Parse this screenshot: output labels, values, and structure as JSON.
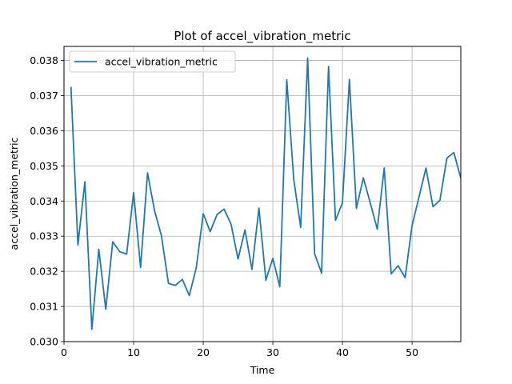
{
  "chart_data": {
    "type": "line",
    "title": "Plot of accel_vibration_metric",
    "xlabel": "Time",
    "ylabel": "accel_vibration_metric",
    "xlim": [
      0,
      57
    ],
    "ylim": [
      0.03,
      0.0384
    ],
    "xticks": [
      0,
      10,
      20,
      30,
      40,
      50
    ],
    "xtick_labels": [
      "0",
      "10",
      "20",
      "30",
      "40",
      "50"
    ],
    "yticks": [
      0.03,
      0.031,
      0.032,
      0.033,
      0.034,
      0.035,
      0.036,
      0.037,
      0.038
    ],
    "ytick_labels": [
      "0.030",
      "0.031",
      "0.032",
      "0.033",
      "0.034",
      "0.035",
      "0.036",
      "0.037",
      "0.038"
    ],
    "grid": true,
    "legend_position": "top-left",
    "series": [
      {
        "name": "accel_vibration_metric",
        "color": "#1f77b4",
        "x": [
          1,
          2,
          3,
          4,
          5,
          6,
          7,
          8,
          9,
          10,
          11,
          12,
          13,
          14,
          15,
          16,
          17,
          18,
          19,
          20,
          21,
          22,
          23,
          24,
          25,
          26,
          27,
          28,
          29,
          30,
          31,
          32,
          33,
          34,
          35,
          36,
          37,
          38,
          39,
          40,
          41,
          42,
          43,
          44,
          45,
          46,
          47,
          48,
          49,
          50,
          51,
          52,
          53,
          54,
          55,
          56,
          57
        ],
        "y": [
          0.03725,
          0.03275,
          0.03455,
          0.03035,
          0.03263,
          0.03092,
          0.03284,
          0.03256,
          0.03249,
          0.03424,
          0.03211,
          0.0348,
          0.03373,
          0.03301,
          0.03166,
          0.0316,
          0.03177,
          0.03131,
          0.0321,
          0.03364,
          0.03313,
          0.03362,
          0.03377,
          0.03334,
          0.03235,
          0.03318,
          0.03205,
          0.0338,
          0.03175,
          0.03237,
          0.03156,
          0.03745,
          0.03462,
          0.03325,
          0.03807,
          0.0325,
          0.03195,
          0.03783,
          0.03345,
          0.03395,
          0.03746,
          0.03379,
          0.03466,
          0.03394,
          0.0332,
          0.03494,
          0.03193,
          0.03216,
          0.03182,
          0.0333,
          0.03412,
          0.03494,
          0.03384,
          0.03402,
          0.03522,
          0.03538,
          0.03465
        ]
      }
    ]
  }
}
